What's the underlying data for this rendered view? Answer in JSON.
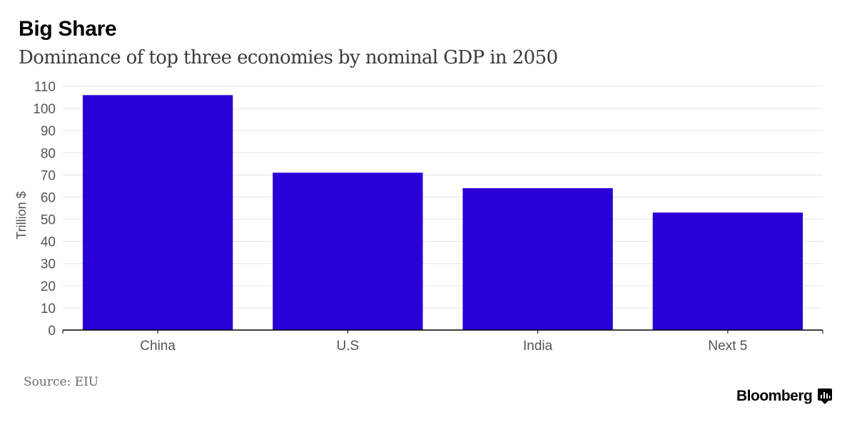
{
  "header": {
    "title": "Big Share",
    "subtitle": "Dominance of top three economies by nominal GDP in 2050"
  },
  "footer": {
    "source": "Source: EIU",
    "brand": "Bloomberg"
  },
  "colors": {
    "bar": "#2a00d8",
    "grid": "#e3e3e3",
    "axis": "#000000",
    "tick_text": "#555555"
  },
  "chart_data": {
    "type": "bar",
    "categories": [
      "China",
      "U.S",
      "India",
      "Next 5"
    ],
    "values": [
      106,
      71,
      64,
      53
    ],
    "title": "Big Share",
    "subtitle": "Dominance of top three economies by nominal GDP in 2050",
    "xlabel": "",
    "ylabel": "Trillion $",
    "ylim": [
      0,
      110
    ],
    "yticks": [
      0,
      10,
      20,
      30,
      40,
      50,
      60,
      70,
      80,
      90,
      100,
      110
    ],
    "grid": true,
    "legend": "none"
  }
}
